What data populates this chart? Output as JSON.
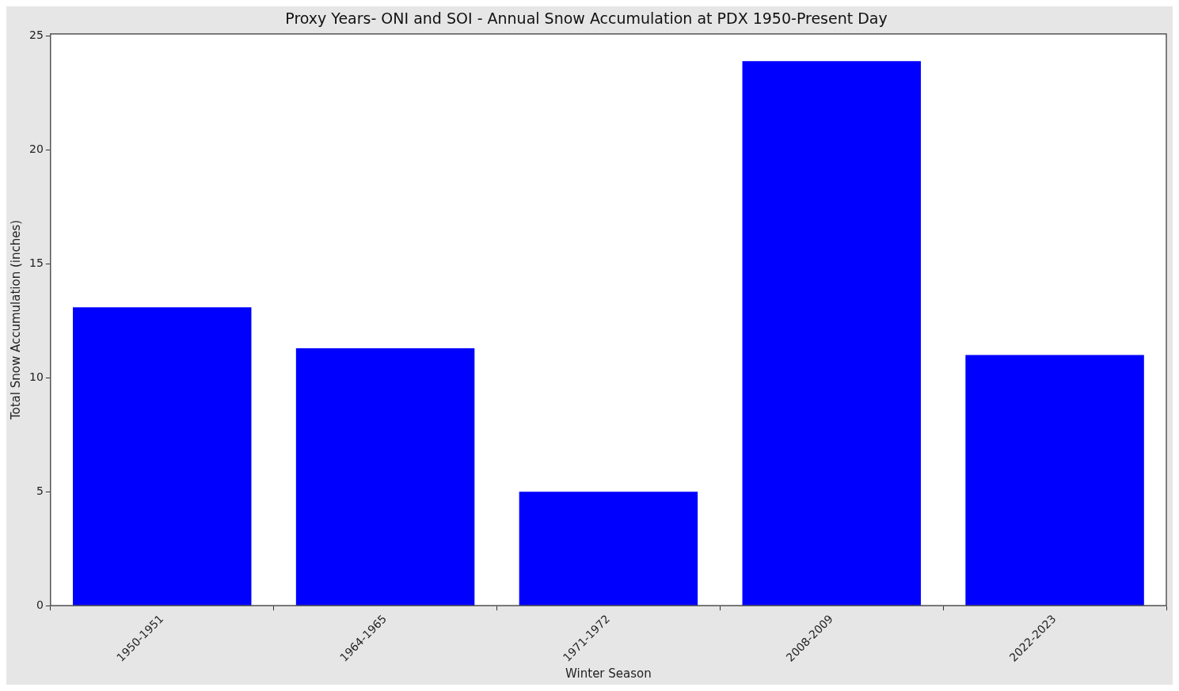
{
  "chart_data": {
    "type": "bar",
    "title": "Proxy Years- ONI and SOI - Annual Snow Accumulation at PDX 1950-Present Day",
    "xlabel": "Winter Season",
    "ylabel": "Total Snow Accumulation (inches)",
    "categories": [
      "1950-1951",
      "1964-1965",
      "1971-1972",
      "2008-2009",
      "2022-2023"
    ],
    "values": [
      13.1,
      11.3,
      5.0,
      23.9,
      11.0
    ],
    "color": "#0000ff",
    "ylim": [
      0,
      25.1
    ],
    "yticks": [
      0,
      5,
      10,
      15,
      20,
      25
    ],
    "grid": false,
    "legend": false
  }
}
